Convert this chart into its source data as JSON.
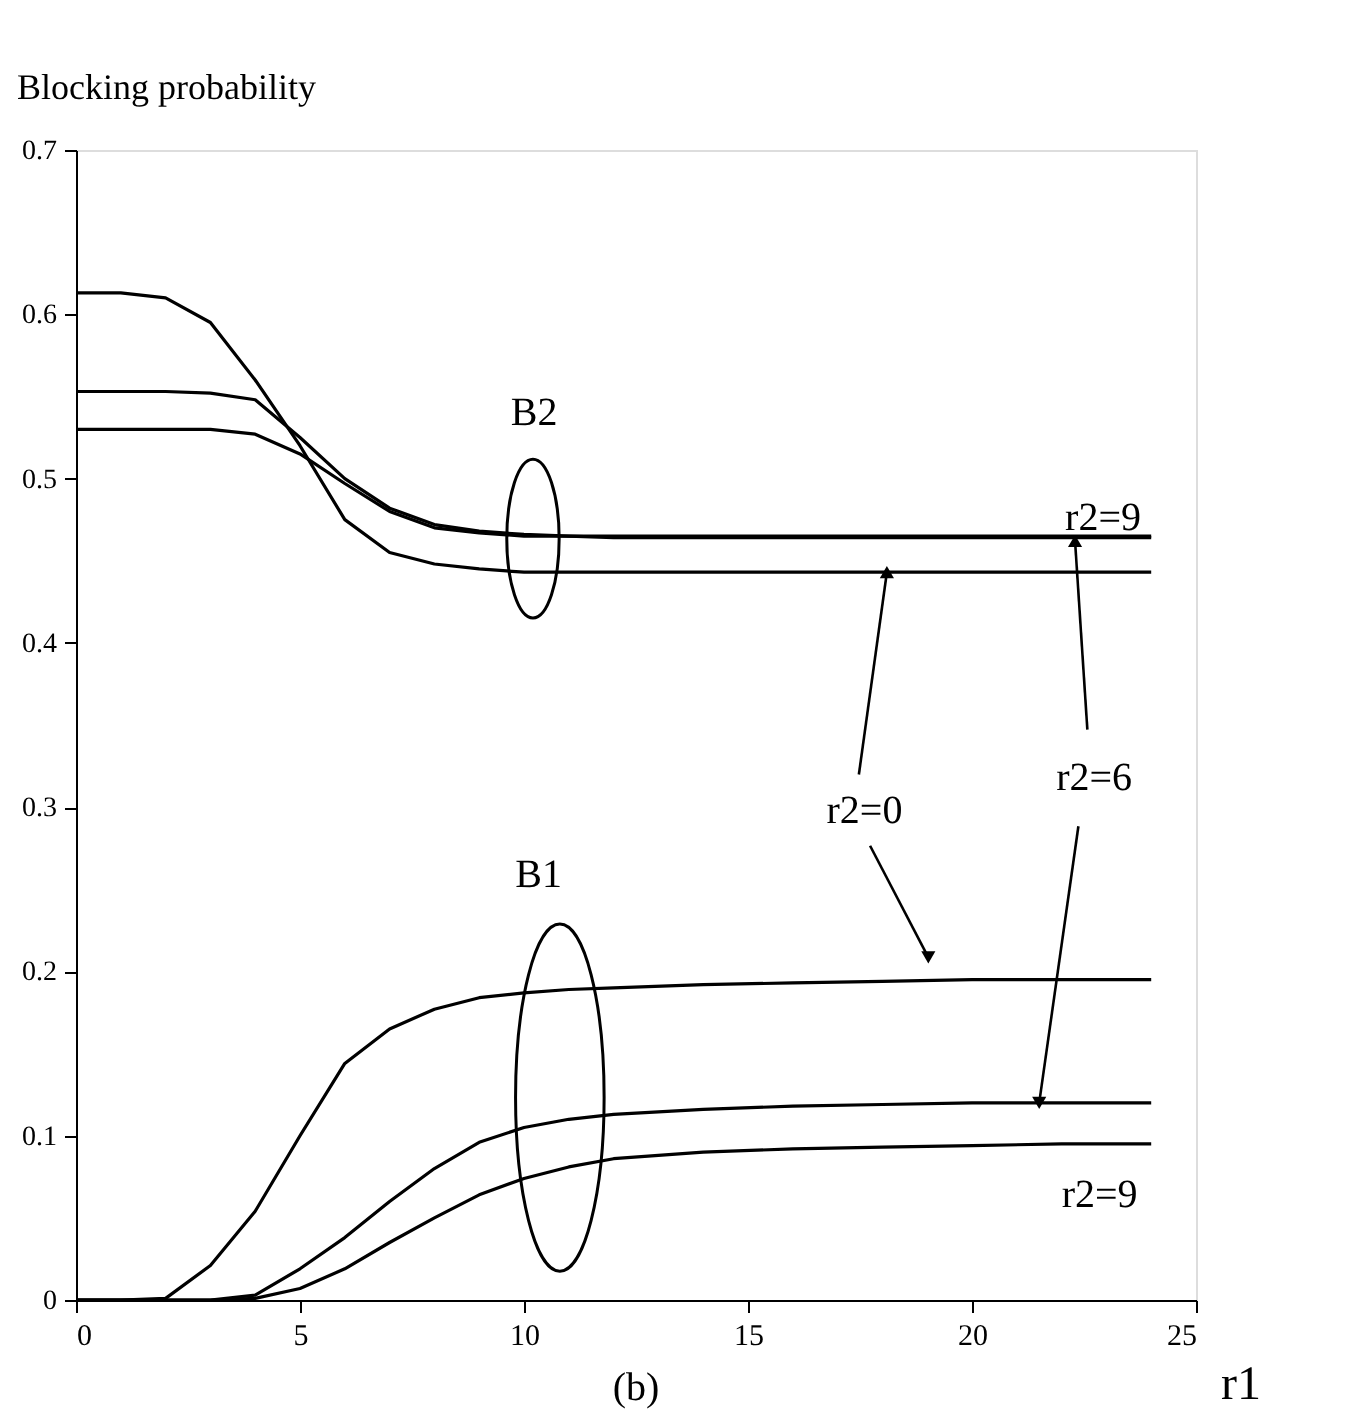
{
  "chart_data": {
    "type": "line",
    "xlabel": "r1",
    "ylabel": "Blocking probability",
    "x": [
      0,
      1,
      2,
      3,
      4,
      5,
      6,
      7,
      8,
      9,
      10,
      11,
      12,
      14,
      16,
      18,
      20,
      22,
      24
    ],
    "series": [
      {
        "color": "#000000",
        "values": [
          0,
          0,
          0.001,
          0.021,
          0.054,
          0.1,
          0.144,
          0.165,
          0.177,
          0.184,
          0.187,
          0.189,
          0.19,
          0.192,
          0.193,
          0.194,
          0.195,
          0.195,
          0.195
        ]
      },
      {
        "color": "#000000",
        "values": [
          0,
          0,
          0,
          0,
          0.003,
          0.019,
          0.038,
          0.06,
          0.08,
          0.096,
          0.105,
          0.11,
          0.113,
          0.116,
          0.118,
          0.119,
          0.12,
          0.12,
          0.12
        ]
      },
      {
        "color": "#000000",
        "values": [
          0,
          0,
          0,
          0,
          0.001,
          0.007,
          0.019,
          0.035,
          0.05,
          0.064,
          0.074,
          0.081,
          0.086,
          0.09,
          0.092,
          0.093,
          0.094,
          0.095,
          0.095
        ]
      },
      {
        "color": "#000000",
        "values": [
          0.613,
          0.613,
          0.61,
          0.595,
          0.56,
          0.52,
          0.475,
          0.455,
          0.448,
          0.445,
          0.443,
          0.443,
          0.443,
          0.443,
          0.443,
          0.443,
          0.443,
          0.443,
          0.443
        ]
      },
      {
        "color": "#000000",
        "values": [
          0.553,
          0.553,
          0.553,
          0.552,
          0.548,
          0.525,
          0.5,
          0.482,
          0.472,
          0.468,
          0.466,
          0.465,
          0.464,
          0.464,
          0.464,
          0.464,
          0.464,
          0.464,
          0.464
        ]
      },
      {
        "color": "#000000",
        "values": [
          0.53,
          0.53,
          0.53,
          0.53,
          0.527,
          0.515,
          0.497,
          0.48,
          0.47,
          0.467,
          0.465,
          0.465,
          0.465,
          0.465,
          0.465,
          0.465,
          0.465,
          0.465,
          0.465
        ]
      }
    ],
    "xlim": [
      0,
      25
    ],
    "ylim": [
      0,
      0.7
    ],
    "xticks": [
      0,
      5,
      10,
      15,
      20,
      25
    ],
    "yticks": [
      0,
      0.1,
      0.2,
      0.3,
      0.4,
      0.5,
      0.6,
      0.7
    ],
    "grid": false,
    "legend": false,
    "marker": "none",
    "line_style": "solid",
    "annotations": [
      "B2",
      "B1",
      "r2=9",
      {
        "text": "r2=0",
        "x": 18.1,
        "y": 0.443
      },
      {
        "text": "r2=6",
        "x": 21.5,
        "y": 0.12
      },
      "r2=9",
      "(b)"
    ]
  }
}
